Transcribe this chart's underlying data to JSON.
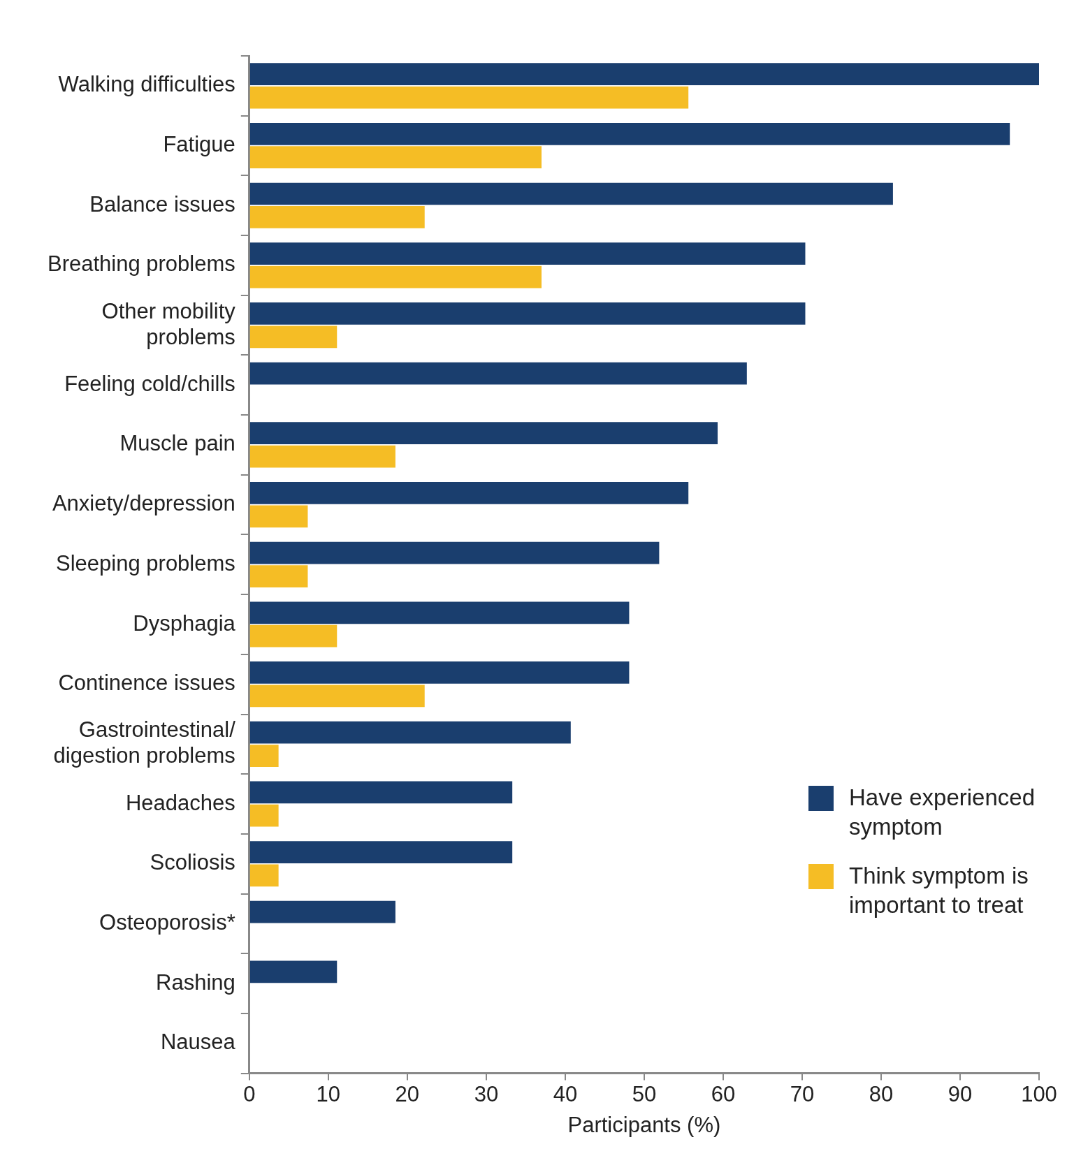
{
  "chart_data": {
    "type": "bar",
    "orientation": "horizontal",
    "xlabel": "Participants (%)",
    "categories": [
      "Walking difficulties",
      "Fatigue",
      "Balance issues",
      "Breathing problems",
      "Other mobility problems",
      "Feeling cold/chills",
      "Muscle pain",
      "Anxiety/depression",
      "Sleeping problems",
      "Dysphagia",
      "Continence issues",
      "Gastrointestinal/digestion problems",
      "Headaches",
      "Scoliosis",
      "Osteoporosis*",
      "Rashing",
      "Nausea"
    ],
    "series": [
      {
        "name": "Have experienced symptom",
        "color": "#1a3e6e",
        "values": [
          100,
          96.3,
          81.5,
          70.4,
          70.4,
          63,
          59.3,
          55.6,
          51.9,
          48.1,
          48.1,
          40.7,
          33.3,
          33.3,
          18.5,
          11.1,
          0
        ]
      },
      {
        "name": "Think symptom is important to treat",
        "color": "#f5bd25",
        "values": [
          55.6,
          37,
          22.2,
          37,
          11.1,
          0,
          18.5,
          7.4,
          7.4,
          11.1,
          22.2,
          3.7,
          3.7,
          3.7,
          0,
          0,
          0
        ]
      }
    ],
    "xlim": [
      0,
      100
    ],
    "xticks": [
      0,
      10,
      20,
      30,
      40,
      50,
      60,
      70,
      80,
      90,
      100
    ],
    "grid": false,
    "legend": "bottom right"
  }
}
